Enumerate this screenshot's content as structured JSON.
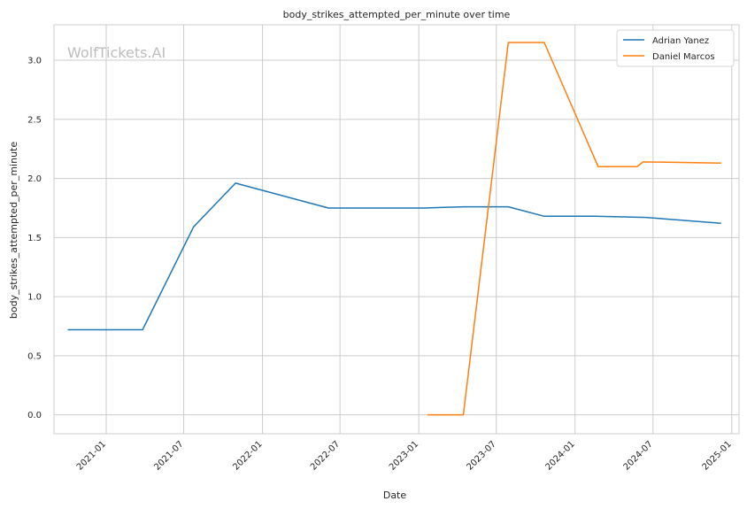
{
  "watermark": "WolfTickets.AI",
  "chart_data": {
    "type": "line",
    "title": "body_strikes_attempted_per_minute over time",
    "xlabel": "Date",
    "ylabel": "body_strikes_attempted_per_minute",
    "xlim": [
      "2020-09-01",
      "2025-01-18"
    ],
    "ylim": [
      -0.16,
      3.3
    ],
    "x_ticks": [
      "2021-01",
      "2021-07",
      "2022-01",
      "2022-07",
      "2023-01",
      "2023-07",
      "2024-01",
      "2024-07",
      "2025-01"
    ],
    "y_ticks": [
      "0.0",
      "0.5",
      "1.0",
      "1.5",
      "2.0",
      "2.5",
      "3.0"
    ],
    "grid": true,
    "legend": "top-right",
    "series": [
      {
        "name": "Adrian Yanez",
        "color": "#1f77b4",
        "points": [
          {
            "x": "2020-10-03",
            "y": 0.72
          },
          {
            "x": "2021-03-27",
            "y": 0.72
          },
          {
            "x": "2021-07-24",
            "y": 1.59
          },
          {
            "x": "2021-10-30",
            "y": 1.96
          },
          {
            "x": "2022-06-04",
            "y": 1.75
          },
          {
            "x": "2023-01-14",
            "y": 1.75
          },
          {
            "x": "2023-04-15",
            "y": 1.76
          },
          {
            "x": "2023-07-29",
            "y": 1.76
          },
          {
            "x": "2023-10-21",
            "y": 1.68
          },
          {
            "x": "2024-02-17",
            "y": 1.68
          },
          {
            "x": "2024-06-15",
            "y": 1.67
          },
          {
            "x": "2024-12-07",
            "y": 1.62
          }
        ]
      },
      {
        "name": "Daniel Marcos",
        "color": "#ff7f0e",
        "points": [
          {
            "x": "2023-01-21",
            "y": 0.0
          },
          {
            "x": "2023-04-15",
            "y": 0.0
          },
          {
            "x": "2023-07-29",
            "y": 3.15
          },
          {
            "x": "2023-10-21",
            "y": 3.15
          },
          {
            "x": "2024-02-24",
            "y": 2.1
          },
          {
            "x": "2024-05-25",
            "y": 2.1
          },
          {
            "x": "2024-06-08",
            "y": 2.14
          },
          {
            "x": "2024-12-07",
            "y": 2.13
          }
        ]
      }
    ]
  }
}
